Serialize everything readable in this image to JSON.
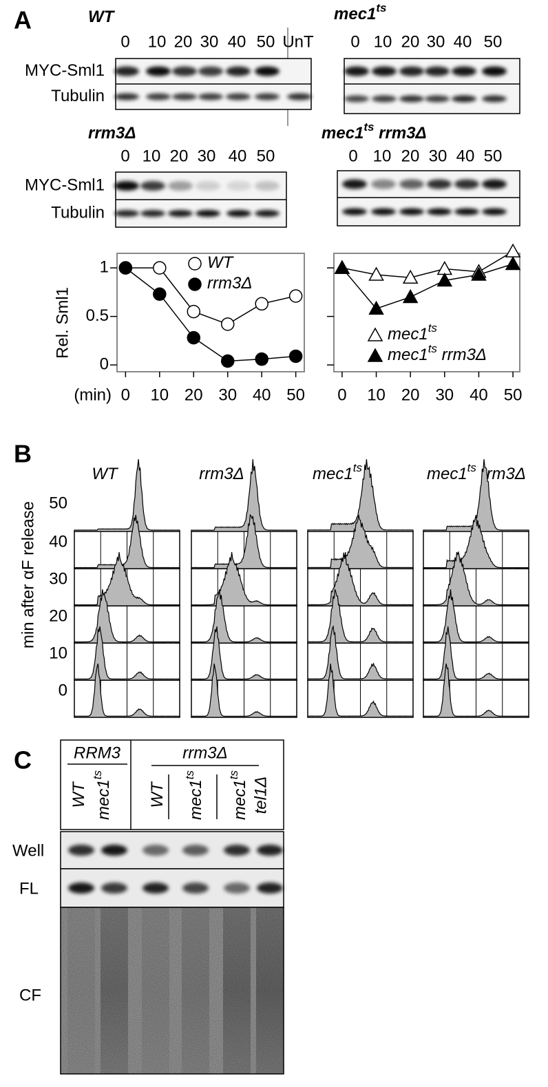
{
  "panel_a": {
    "label": "A",
    "blots": [
      {
        "title": {
          "text": "WT"
        },
        "lanes": [
          0,
          10,
          20,
          30,
          40,
          50,
          "UnT"
        ],
        "rows": [
          "MYC-Sml1",
          "Tubulin"
        ]
      },
      {
        "title": {
          "text": "mec1",
          "sup": "ts"
        },
        "lanes": [
          0,
          10,
          20,
          30,
          40,
          50
        ]
      },
      {
        "title": {
          "text": "rrm3Δ"
        },
        "lanes": [
          0,
          10,
          20,
          30,
          40,
          50
        ],
        "rows": [
          "MYC-Sml1",
          "Tubulin"
        ]
      },
      {
        "title": {
          "text": "mec1",
          "sup": "ts",
          "rest": " rrm3Δ"
        },
        "lanes": [
          0,
          10,
          20,
          30,
          40,
          50
        ]
      }
    ]
  },
  "chart_data": [
    {
      "type": "line",
      "ylabel": "Rel. Sml1",
      "xlabel": "(min)",
      "x": [
        0,
        10,
        20,
        30,
        40,
        50
      ],
      "xlim": [
        -2.5,
        52.5
      ],
      "xticks": [
        0,
        10,
        20,
        30,
        40,
        50
      ],
      "ylim": [
        -0.07,
        1.15
      ],
      "yticks": [
        0,
        0.5,
        1
      ],
      "legend": "upper right",
      "series": [
        {
          "name": "WT",
          "marker": "open-circle",
          "color": "#000000",
          "values": [
            1,
            1,
            0.55,
            0.42,
            0.63,
            0.71
          ]
        },
        {
          "name": "rrm3Δ",
          "marker": "filled-circle",
          "color": "#000000",
          "values": [
            1,
            0.73,
            0.28,
            0.04,
            0.06,
            0.09
          ]
        }
      ]
    },
    {
      "type": "line",
      "x": [
        0,
        10,
        20,
        30,
        40,
        50
      ],
      "xlim": [
        -2.4,
        52
      ],
      "xticks": [
        0,
        10,
        20,
        30,
        40,
        50
      ],
      "ylim": [
        -0.07,
        1.15
      ],
      "yticks": [
        0,
        0.5,
        1
      ],
      "ytick_labels": false,
      "legend": "lower center",
      "series": [
        {
          "name": "mec1",
          "name_sup": "ts",
          "marker": "open-triangle",
          "color": "#000000",
          "values": [
            1,
            0.93,
            0.9,
            0.99,
            0.96,
            1.17
          ]
        },
        {
          "name": "mec1",
          "name_sup": "ts",
          "name_rest": " rrm3Δ",
          "marker": "filled-triangle",
          "color": "#000000",
          "values": [
            1,
            0.58,
            0.7,
            0.87,
            0.93,
            1.04
          ]
        }
      ]
    }
  ],
  "panel_b": {
    "label": "B",
    "genotypes": [
      {
        "text": "WT"
      },
      {
        "text": "rrm3Δ"
      },
      {
        "text": "mec1",
        "sup": "ts"
      },
      {
        "text": "mec1",
        "sup": "ts",
        "rest": " rrm3Δ"
      }
    ],
    "ylabel": "min after αF release",
    "timepoints": [
      50,
      40,
      30,
      20,
      10,
      0
    ]
  },
  "panel_c": {
    "label": "C",
    "groups": [
      "RRM3",
      "rrm3Δ"
    ],
    "lanes": [
      {
        "text": "WT"
      },
      {
        "text": "mec1",
        "sup": "ts"
      },
      {
        "text": "WT"
      },
      {
        "text": "mec1",
        "sup": "ts"
      },
      {
        "text": "mec1",
        "sup": "ts",
        "line2": "tel1Δ"
      }
    ],
    "rows": [
      "Well",
      "FL",
      "CF"
    ]
  }
}
